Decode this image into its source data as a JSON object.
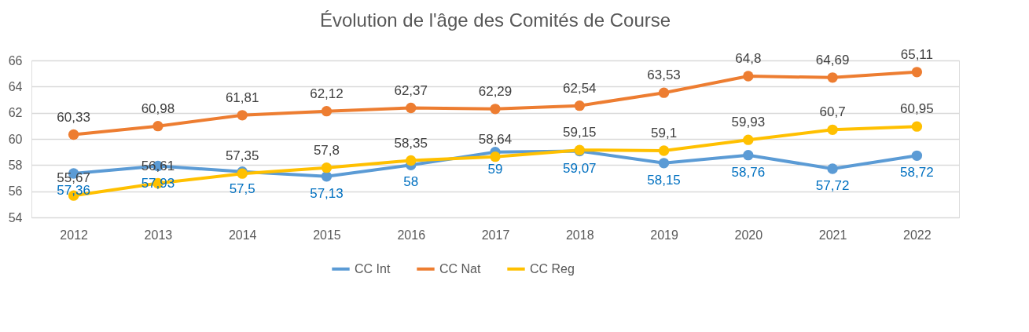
{
  "chart_data": {
    "type": "line",
    "title": "Évolution de l'âge des Comités de Course",
    "categories": [
      "2012",
      "2013",
      "2014",
      "2015",
      "2016",
      "2017",
      "2018",
      "2019",
      "2020",
      "2021",
      "2022"
    ],
    "series": [
      {
        "name": "CC Int",
        "color": "#5b9bd5",
        "values": [
          57.36,
          57.93,
          57.5,
          57.13,
          58,
          59,
          59.07,
          58.15,
          58.76,
          57.72,
          58.72
        ],
        "value_labels": [
          "57,36",
          "57,93",
          "57,5",
          "57,13",
          "58",
          "59",
          "59,07",
          "58,15",
          "58,76",
          "57,72",
          "58,72"
        ]
      },
      {
        "name": "CC Nat",
        "color": "#ed7d31",
        "values": [
          60.33,
          60.98,
          61.81,
          62.12,
          62.37,
          62.29,
          62.54,
          63.53,
          64.8,
          64.69,
          65.11
        ],
        "value_labels": [
          "60,33",
          "60,98",
          "61,81",
          "62,12",
          "62,37",
          "62,29",
          "62,54",
          "63,53",
          "64,8",
          "64,69",
          "65,11"
        ]
      },
      {
        "name": "CC Reg",
        "color": "#ffc000",
        "values": [
          55.67,
          56.61,
          57.35,
          57.8,
          58.35,
          58.64,
          59.15,
          59.1,
          59.93,
          60.7,
          60.95
        ],
        "value_labels": [
          "55,67",
          "56,61",
          "57,35",
          "57,8",
          "58,35",
          "58,64",
          "59,15",
          "59,1",
          "59,93",
          "60,7",
          "60,95"
        ]
      }
    ],
    "ylim": [
      54,
      66
    ],
    "yticks": [
      54,
      56,
      58,
      60,
      62,
      64,
      66
    ],
    "grid": "y",
    "legend": "bottom",
    "marker": "circle",
    "line_style": "solid"
  }
}
